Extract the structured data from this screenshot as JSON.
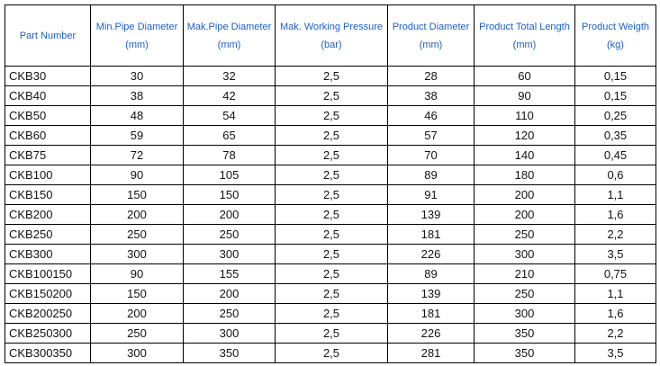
{
  "table": {
    "header": [
      {
        "title": "Part Number"
      },
      {
        "title": "Min.Pipe Diameter",
        "unit": "(mm)"
      },
      {
        "title": "Mak.Pipe Diameter",
        "unit": "(mm)"
      },
      {
        "title": "Mak. Working Pressure",
        "unit": "(bar)"
      },
      {
        "title": "Product Diameter",
        "unit": "(mm)"
      },
      {
        "title": "Product Total Length",
        "unit": "(mm)"
      },
      {
        "title": "Product Weigth",
        "unit": "(kg)"
      }
    ],
    "rows": [
      [
        "CKB30",
        "30",
        "32",
        "2,5",
        "28",
        "60",
        "0,15"
      ],
      [
        "CKB40",
        "38",
        "42",
        "2,5",
        "38",
        "90",
        "0,15"
      ],
      [
        "CKB50",
        "48",
        "54",
        "2,5",
        "46",
        "110",
        "0,25"
      ],
      [
        "CKB60",
        "59",
        "65",
        "2,5",
        "57",
        "120",
        "0,35"
      ],
      [
        "CKB75",
        "72",
        "78",
        "2,5",
        "70",
        "140",
        "0,45"
      ],
      [
        "CKB100",
        "90",
        "105",
        "2,5",
        "89",
        "180",
        "0,6"
      ],
      [
        "CKB150",
        "150",
        "150",
        "2,5",
        "91",
        "200",
        "1,1"
      ],
      [
        "CKB200",
        "200",
        "200",
        "2,5",
        "139",
        "200",
        "1,6"
      ],
      [
        "CKB250",
        "250",
        "250",
        "2,5",
        "181",
        "250",
        "2,2"
      ],
      [
        "CKB300",
        "300",
        "300",
        "2,5",
        "226",
        "300",
        "3,5"
      ],
      [
        "CKB100150",
        "90",
        "155",
        "2,5",
        "89",
        "210",
        "0,75"
      ],
      [
        "CKB150200",
        "150",
        "200",
        "2,5",
        "139",
        "250",
        "1,1"
      ],
      [
        "CKB200250",
        "200",
        "250",
        "2,5",
        "181",
        "300",
        "1,6"
      ],
      [
        "CKB250300",
        "250",
        "300",
        "2,5",
        "226",
        "350",
        "2,2"
      ],
      [
        "CKB300350",
        "300",
        "350",
        "2,5",
        "281",
        "350",
        "3,5"
      ]
    ]
  }
}
